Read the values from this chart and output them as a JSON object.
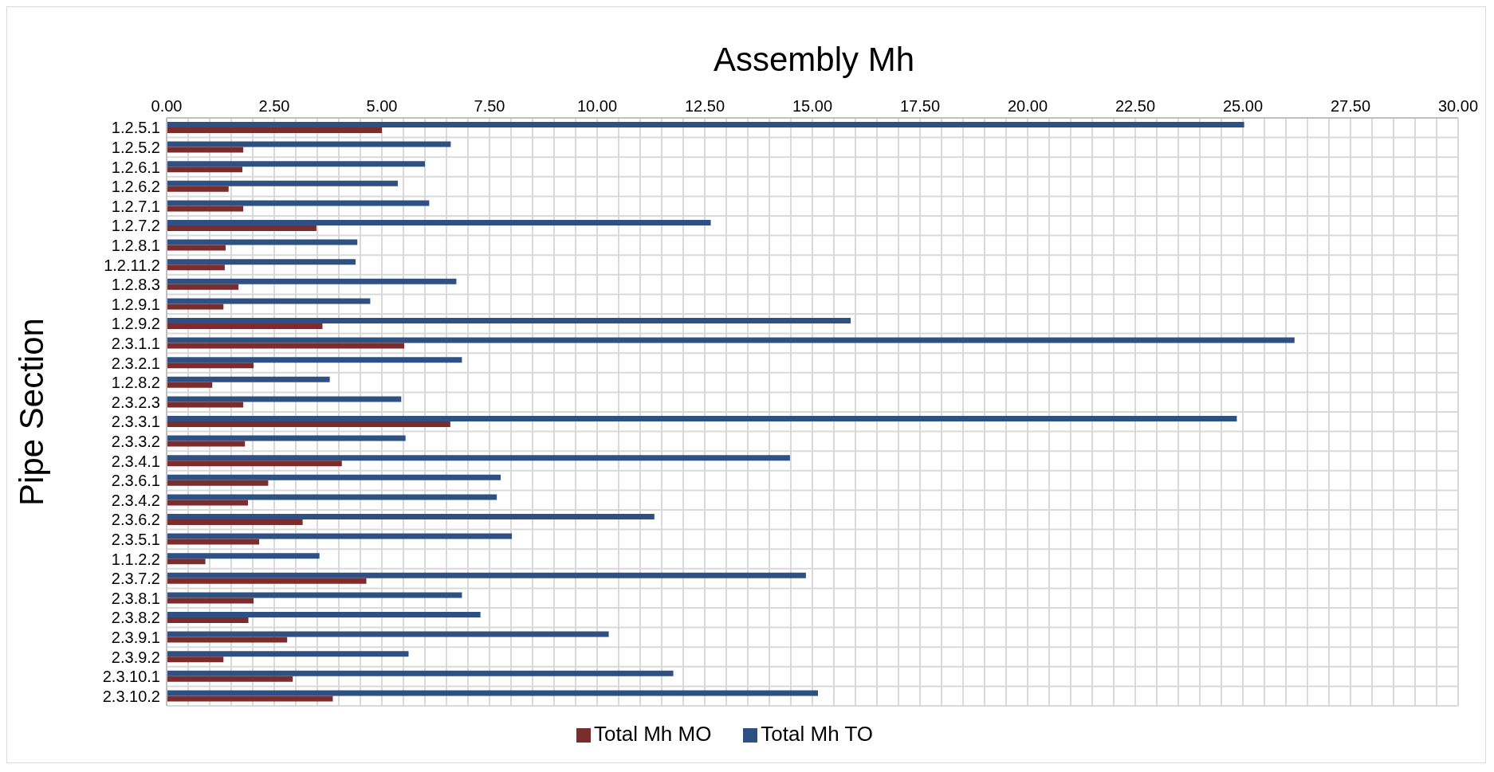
{
  "chart_data": {
    "type": "bar",
    "orientation": "horizontal",
    "title": "Assembly Mh",
    "ylabel": "Pipe Section",
    "categories": [
      "1.2.5.1",
      "1.2.5.2",
      "1.2.6.1",
      "1.2.6.2",
      "1.2.7.1",
      "1.2.7.2",
      "1.2.8.1",
      "1.2.11.2",
      "1.2.8.3",
      "1.2.9.1",
      "1.2.9.2",
      "2.3.1.1",
      "2.3.2.1",
      "1.2.8.2",
      "2.3.2.3",
      "2.3.3.1",
      "2.3.3.2",
      "2.3.4.1",
      "2.3.6.1",
      "2.3.4.2",
      "2.3.6.2",
      "2.3.5.1",
      "1.1.2.2",
      "2.3.7.2",
      "2.3.8.1",
      "2.3.8.2",
      "2.3.9.1",
      "2.3.9.2",
      "2.3.10.1",
      "2.3.10.2"
    ],
    "series": [
      {
        "name": "Total Mh TO",
        "color": "#2f5082",
        "values": [
          25.03,
          6.6,
          6.0,
          5.37,
          6.1,
          12.64,
          4.43,
          4.39,
          6.73,
          4.73,
          15.89,
          26.2,
          6.86,
          3.79,
          5.45,
          24.86,
          5.55,
          14.48,
          7.76,
          7.67,
          11.33,
          8.02,
          3.55,
          14.85,
          6.86,
          7.29,
          10.27,
          5.62,
          11.77,
          15.13
        ]
      },
      {
        "name": "Total Mh MO",
        "color": "#7b2c2c",
        "values": [
          5.0,
          1.78,
          1.76,
          1.44,
          1.78,
          3.48,
          1.37,
          1.35,
          1.67,
          1.32,
          3.62,
          5.52,
          2.02,
          1.06,
          1.78,
          6.59,
          1.82,
          4.07,
          2.36,
          1.89,
          3.16,
          2.15,
          0.9,
          4.64,
          2.02,
          1.9,
          2.8,
          1.32,
          2.93,
          3.86
        ]
      }
    ],
    "xlim": [
      0,
      30
    ],
    "xticks": [
      {
        "value": 0,
        "label": "0.00"
      },
      {
        "value": 0.5,
        "label": null
      },
      {
        "value": 1,
        "label": null
      },
      {
        "value": 1.5,
        "label": null
      },
      {
        "value": 2,
        "label": null
      },
      {
        "value": 2.5,
        "label": "2.50"
      },
      {
        "value": 3,
        "label": null
      },
      {
        "value": 3.5,
        "label": null
      },
      {
        "value": 4,
        "label": null
      },
      {
        "value": 4.5,
        "label": null
      },
      {
        "value": 5,
        "label": "5.00"
      },
      {
        "value": 5.5,
        "label": null
      },
      {
        "value": 6,
        "label": null
      },
      {
        "value": 6.5,
        "label": null
      },
      {
        "value": 7,
        "label": null
      },
      {
        "value": 7.5,
        "label": "7.50"
      },
      {
        "value": 8,
        "label": null
      },
      {
        "value": 8.5,
        "label": null
      },
      {
        "value": 9,
        "label": null
      },
      {
        "value": 9.5,
        "label": null
      },
      {
        "value": 10,
        "label": "10.00"
      },
      {
        "value": 10.5,
        "label": null
      },
      {
        "value": 11,
        "label": null
      },
      {
        "value": 11.5,
        "label": null
      },
      {
        "value": 12,
        "label": null
      },
      {
        "value": 12.5,
        "label": "12.50"
      },
      {
        "value": 13,
        "label": null
      },
      {
        "value": 13.5,
        "label": null
      },
      {
        "value": 14,
        "label": null
      },
      {
        "value": 14.5,
        "label": null
      },
      {
        "value": 15,
        "label": "15.00"
      },
      {
        "value": 15.5,
        "label": null
      },
      {
        "value": 16,
        "label": null
      },
      {
        "value": 16.5,
        "label": null
      },
      {
        "value": 17,
        "label": null
      },
      {
        "value": 17.5,
        "label": "17.50"
      },
      {
        "value": 18,
        "label": null
      },
      {
        "value": 18.5,
        "label": null
      },
      {
        "value": 19,
        "label": null
      },
      {
        "value": 19.5,
        "label": null
      },
      {
        "value": 20,
        "label": "20.00"
      },
      {
        "value": 20.5,
        "label": null
      },
      {
        "value": 21,
        "label": null
      },
      {
        "value": 21.5,
        "label": null
      },
      {
        "value": 22,
        "label": null
      },
      {
        "value": 22.5,
        "label": "22.50"
      },
      {
        "value": 23,
        "label": null
      },
      {
        "value": 23.5,
        "label": null
      },
      {
        "value": 24,
        "label": null
      },
      {
        "value": 24.5,
        "label": null
      },
      {
        "value": 25,
        "label": "25.00"
      },
      {
        "value": 25.5,
        "label": null
      },
      {
        "value": 26,
        "label": null
      },
      {
        "value": 26.5,
        "label": null
      },
      {
        "value": 27,
        "label": null
      },
      {
        "value": 27.5,
        "label": "27.50"
      },
      {
        "value": 28,
        "label": null
      },
      {
        "value": 28.5,
        "label": null
      },
      {
        "value": 29,
        "label": null
      },
      {
        "value": 29.5,
        "label": null
      },
      {
        "value": 30,
        "label": "30.00"
      }
    ],
    "grid": true,
    "legend": "bottom"
  }
}
